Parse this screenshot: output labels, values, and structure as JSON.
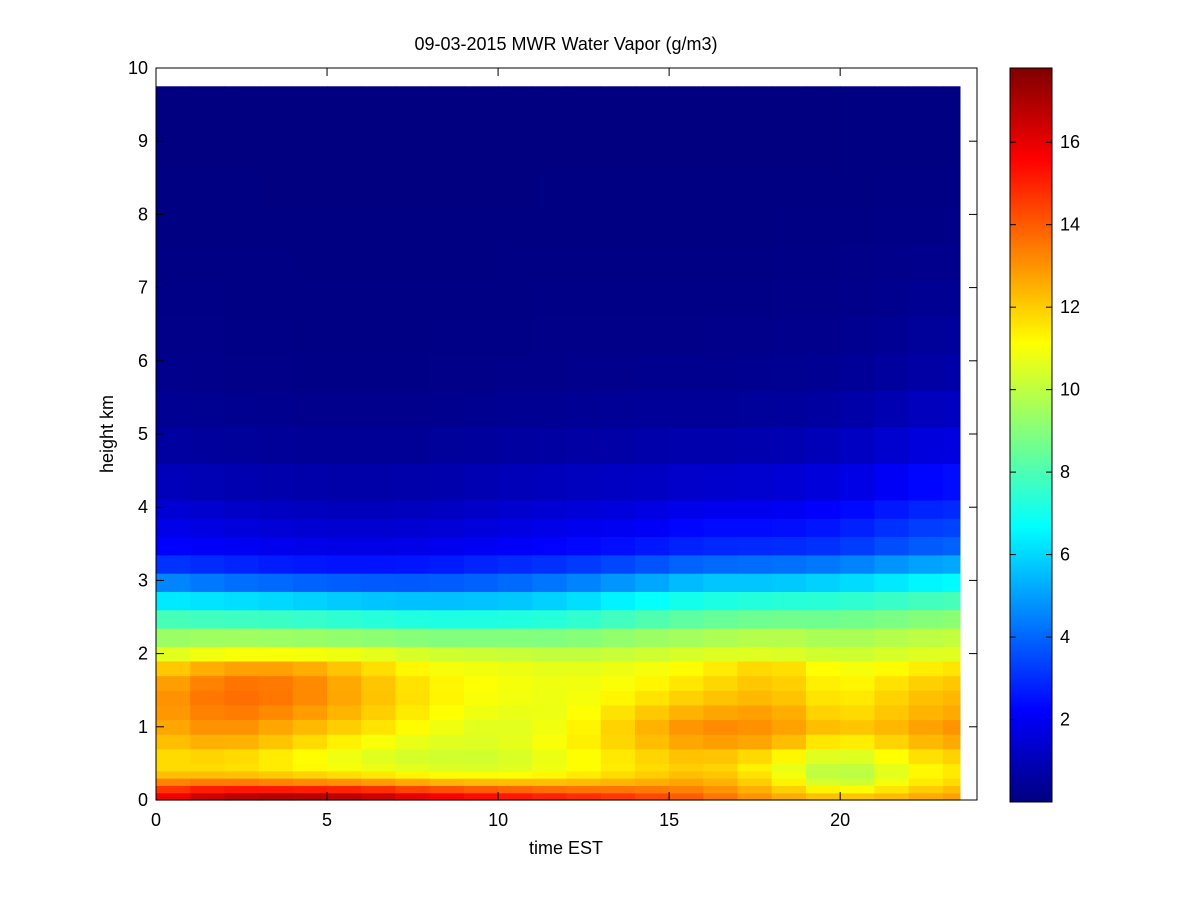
{
  "chart_data": {
    "type": "heatmap",
    "title": "09-03-2015 MWR Water Vapor (g/m3)",
    "xlabel": "time EST",
    "ylabel": "height km",
    "xlim": [
      0,
      24
    ],
    "ylim": [
      0,
      10
    ],
    "x_ticks": [
      0,
      5,
      10,
      15,
      20
    ],
    "y_ticks": [
      0,
      1,
      2,
      3,
      4,
      5,
      6,
      7,
      8,
      9,
      10
    ],
    "colorbar": {
      "colormap": "jet",
      "range": [
        0,
        17.8
      ],
      "ticks": [
        2,
        4,
        6,
        8,
        10,
        12,
        14,
        16
      ]
    },
    "time_range": [
      0,
      23.5
    ],
    "height_max": 9.75,
    "grid": false,
    "data": {
      "times": [
        0,
        1,
        2,
        3,
        4,
        5,
        6,
        7,
        8,
        9,
        10,
        11,
        12,
        13,
        14,
        15,
        16,
        17,
        18,
        19,
        20,
        21,
        22,
        23
      ],
      "heights": [
        0.0,
        0.1,
        0.2,
        0.3,
        0.5,
        0.75,
        1.0,
        1.25,
        1.5,
        1.75,
        2.0,
        2.25,
        2.5,
        2.75,
        3.0,
        3.25,
        3.5,
        4.0,
        4.5,
        5.0,
        5.5,
        6.0,
        7.0,
        8.0,
        9.0
      ],
      "profiles": [
        {
          "t": 0,
          "v": [
            16.0,
            15.0,
            14.0,
            12.5,
            11.5,
            12.0,
            12.5,
            12.8,
            12.8,
            12.2,
            10.5,
            9.2,
            7.8,
            6.2,
            4.5,
            3.0,
            2.2,
            1.5,
            0.9,
            0.5,
            0.3,
            0.2,
            0.1,
            0.05,
            0.02
          ]
        },
        {
          "t": 2,
          "v": [
            17.5,
            16.0,
            14.5,
            12.5,
            11.5,
            12.5,
            13.2,
            13.6,
            13.8,
            13.2,
            11.0,
            9.3,
            7.6,
            6.0,
            4.0,
            2.8,
            2.0,
            1.3,
            0.7,
            0.4,
            0.25,
            0.15,
            0.1,
            0.05,
            0.02
          ]
        },
        {
          "t": 4,
          "v": [
            17.8,
            16.0,
            14.2,
            12.3,
            11.0,
            11.8,
            12.5,
            13.2,
            13.6,
            13.2,
            11.0,
            9.2,
            7.5,
            5.8,
            3.8,
            2.5,
            1.8,
            1.1,
            0.6,
            0.35,
            0.2,
            0.12,
            0.08,
            0.04,
            0.02
          ]
        },
        {
          "t": 6,
          "v": [
            17.5,
            15.8,
            14.0,
            12.0,
            10.5,
            11.0,
            11.8,
            12.3,
            12.5,
            12.2,
            10.8,
            9.0,
            7.2,
            5.5,
            3.6,
            2.4,
            1.7,
            1.0,
            0.55,
            0.3,
            0.18,
            0.1,
            0.07,
            0.04,
            0.02
          ]
        },
        {
          "t": 8,
          "v": [
            16.5,
            15.0,
            13.5,
            11.5,
            10.2,
            10.5,
            11.0,
            11.3,
            11.5,
            11.2,
            10.3,
            8.8,
            7.0,
            5.4,
            3.6,
            2.5,
            1.8,
            1.1,
            0.6,
            0.35,
            0.2,
            0.12,
            0.08,
            0.04,
            0.02
          ]
        },
        {
          "t": 10,
          "v": [
            16.0,
            14.5,
            13.2,
            11.3,
            10.2,
            10.5,
            10.5,
            10.8,
            11.0,
            11.0,
            10.2,
            8.8,
            7.0,
            5.5,
            3.8,
            2.8,
            2.0,
            1.3,
            0.8,
            0.45,
            0.25,
            0.15,
            0.08,
            0.04,
            0.02
          ]
        },
        {
          "t": 12,
          "v": [
            15.5,
            14.2,
            13.0,
            11.5,
            10.8,
            11.2,
            11.0,
            10.8,
            10.8,
            10.8,
            10.0,
            8.8,
            7.2,
            5.8,
            4.2,
            3.0,
            2.2,
            1.5,
            0.9,
            0.5,
            0.3,
            0.18,
            0.1,
            0.05,
            0.02
          ]
        },
        {
          "t": 14,
          "v": [
            15.0,
            14.0,
            13.0,
            12.0,
            11.5,
            12.0,
            12.2,
            11.8,
            11.2,
            11.0,
            10.2,
            9.2,
            7.8,
            6.5,
            4.8,
            3.4,
            2.4,
            1.6,
            1.0,
            0.6,
            0.35,
            0.2,
            0.1,
            0.05,
            0.02
          ]
        },
        {
          "t": 16,
          "v": [
            14.0,
            13.5,
            13.0,
            12.5,
            12.0,
            12.8,
            13.2,
            12.5,
            11.8,
            11.5,
            10.5,
            9.5,
            8.3,
            7.0,
            5.5,
            3.9,
            2.8,
            1.9,
            1.1,
            0.65,
            0.35,
            0.2,
            0.1,
            0.05,
            0.02
          ]
        },
        {
          "t": 18,
          "v": [
            13.0,
            12.5,
            12.0,
            11.5,
            11.0,
            12.5,
            13.0,
            12.8,
            12.2,
            12.3,
            10.6,
            9.8,
            8.5,
            7.2,
            5.5,
            4.0,
            2.8,
            1.9,
            1.2,
            0.7,
            0.4,
            0.25,
            0.12,
            0.06,
            0.02
          ]
        },
        {
          "t": 20,
          "v": [
            12.5,
            11.5,
            10.5,
            9.5,
            9.8,
            11.0,
            12.0,
            11.5,
            11.2,
            11.0,
            10.2,
            9.5,
            8.5,
            7.3,
            5.8,
            4.2,
            3.0,
            2.2,
            1.4,
            0.9,
            0.5,
            0.3,
            0.15,
            0.07,
            0.03
          ]
        },
        {
          "t": 22,
          "v": [
            12.8,
            12.0,
            11.5,
            11.0,
            11.0,
            12.0,
            12.5,
            12.2,
            12.0,
            11.5,
            10.5,
            9.8,
            8.8,
            7.6,
            6.3,
            4.8,
            3.6,
            2.7,
            2.0,
            1.3,
            0.85,
            0.5,
            0.25,
            0.1,
            0.05
          ]
        },
        {
          "t": 23,
          "v": [
            13.0,
            12.5,
            12.0,
            11.5,
            11.5,
            12.5,
            13.0,
            12.5,
            12.3,
            11.8,
            10.6,
            10.0,
            9.0,
            7.8,
            6.5,
            5.0,
            3.8,
            2.9,
            2.2,
            1.5,
            1.0,
            0.6,
            0.3,
            0.12,
            0.05
          ]
        }
      ]
    }
  }
}
